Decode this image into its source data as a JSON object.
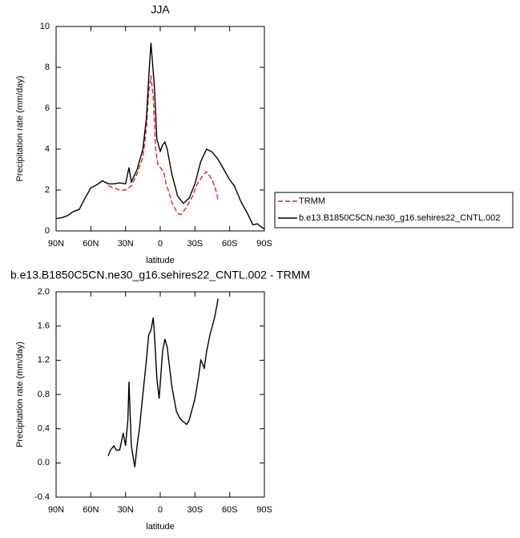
{
  "chart_data": [
    {
      "type": "line",
      "title": "JJA",
      "x_label": "latitude",
      "y_label": "Precipitation rate (mm/day)",
      "xlim": [
        90,
        -90
      ],
      "xticks": [
        {
          "value": 90,
          "label": "90N"
        },
        {
          "value": 60,
          "label": "60N"
        },
        {
          "value": 30,
          "label": "30N"
        },
        0,
        {
          "value": -30,
          "label": "30S"
        },
        {
          "value": -60,
          "label": "60S"
        },
        {
          "value": -90,
          "label": "90S"
        }
      ],
      "ylim": [
        0,
        10
      ],
      "yticks": [
        0,
        2,
        4,
        6,
        8,
        10
      ],
      "legend": "right",
      "series": [
        {
          "name": "TRMM",
          "color": "#e0201c",
          "dashed": true,
          "x": [
            45,
            40,
            35,
            30,
            25,
            20,
            15,
            12,
            10,
            8,
            6,
            4,
            2,
            0,
            -3,
            -5,
            -8,
            -10,
            -15,
            -18,
            -22,
            -28,
            -32,
            -38,
            -40,
            -45,
            -48,
            -50
          ],
          "values": [
            2.2,
            2.1,
            2.0,
            2.0,
            2.2,
            2.8,
            3.6,
            5.0,
            6.8,
            7.6,
            6.5,
            4.0,
            3.2,
            3.1,
            2.9,
            2.3,
            1.8,
            1.4,
            0.85,
            0.8,
            1.1,
            1.7,
            2.3,
            2.8,
            2.9,
            2.5,
            2.0,
            1.5
          ]
        },
        {
          "name": "b.e13.B1850C5CN.ne30_g16.sehires22_CNTL.002",
          "color": "#000000",
          "dashed": false,
          "x": [
            90,
            85,
            80,
            75,
            70,
            65,
            60,
            55,
            50,
            45,
            40,
            35,
            30,
            27,
            25,
            20,
            15,
            12,
            10,
            8,
            5,
            3,
            0,
            -2,
            -4,
            -6,
            -10,
            -15,
            -20,
            -25,
            -30,
            -35,
            -40,
            -45,
            -50,
            -55,
            -60,
            -64,
            -70,
            -75,
            -80,
            -84,
            -87,
            -90
          ],
          "values": [
            0.6,
            0.65,
            0.75,
            0.95,
            1.05,
            1.6,
            2.1,
            2.25,
            2.45,
            2.3,
            2.3,
            2.35,
            2.3,
            3.1,
            2.4,
            3.0,
            4.0,
            5.5,
            7.5,
            9.2,
            7.0,
            4.5,
            3.9,
            4.2,
            4.35,
            4.0,
            2.8,
            1.7,
            1.35,
            1.6,
            2.3,
            3.4,
            4.0,
            3.85,
            3.5,
            3.0,
            2.5,
            2.2,
            1.4,
            0.9,
            0.3,
            0.35,
            0.2,
            0.1
          ]
        }
      ]
    },
    {
      "type": "line",
      "title": "b.e13.B1850C5CN.ne30_g16.sehires22_CNTL.002 - TRMM",
      "x_label": "latitude",
      "y_label": "Precipitation rate (mm/day)",
      "xlim": [
        90,
        -90
      ],
      "xticks": [
        {
          "value": 90,
          "label": "90N"
        },
        {
          "value": 60,
          "label": "60N"
        },
        {
          "value": 30,
          "label": "30N"
        },
        0,
        {
          "value": -30,
          "label": "30S"
        },
        {
          "value": -60,
          "label": "60S"
        },
        {
          "value": -90,
          "label": "90S"
        }
      ],
      "ylim": [
        -0.4,
        2.0
      ],
      "yticks": [
        -0.4,
        {
          "value": 0,
          "label": "0.0"
        },
        0.4,
        0.8,
        1.2,
        1.6,
        {
          "value": 2.0,
          "label": "2.0"
        }
      ],
      "series": [
        {
          "color": "#000000",
          "dashed": false,
          "x": [
            45,
            43,
            40,
            38,
            35,
            32,
            30,
            28,
            27,
            25,
            22,
            20,
            18,
            15,
            12,
            10,
            8,
            6,
            5,
            3,
            1,
            -2,
            -4,
            -6,
            -10,
            -14,
            -17,
            -20,
            -23,
            -25,
            -30,
            -33,
            -35,
            -37,
            -38,
            -40,
            -43,
            -47,
            -50
          ],
          "values": [
            0.08,
            0.15,
            0.2,
            0.15,
            0.15,
            0.35,
            0.2,
            0.5,
            0.95,
            0.2,
            -0.05,
            0.2,
            0.4,
            0.8,
            1.2,
            1.5,
            1.55,
            1.7,
            1.5,
            1.0,
            0.75,
            1.3,
            1.45,
            1.35,
            0.9,
            0.6,
            0.52,
            0.48,
            0.45,
            0.5,
            0.75,
            1.0,
            1.2,
            1.15,
            1.1,
            1.3,
            1.5,
            1.7,
            1.92
          ]
        }
      ]
    }
  ]
}
